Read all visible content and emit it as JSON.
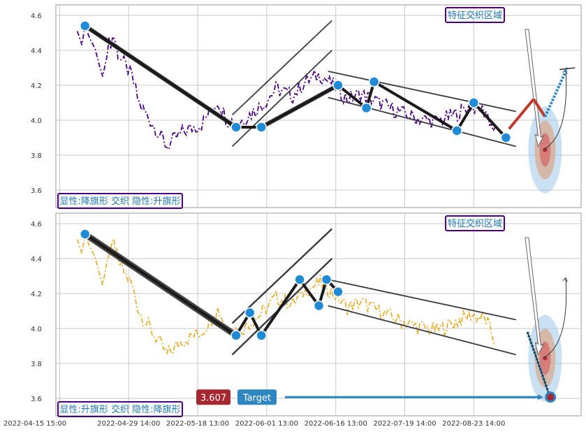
{
  "chart_data": [
    {
      "type": "line",
      "panel": "top",
      "ylim": [
        3.5,
        4.66
      ],
      "yticks": [
        3.6,
        3.8,
        4.0,
        4.2,
        4.4,
        4.6
      ],
      "grid": true,
      "series_color": "#4b0082",
      "series_style": "dash-dot",
      "zone_label": "特征交织区域",
      "legend_label": "显性:降旗形 交织 隐性:升旗形",
      "turning_points": [
        {
          "x": 1.3,
          "y": 4.54
        },
        {
          "x": 21.0,
          "y": 3.96
        },
        {
          "x": 24.3,
          "y": 3.96
        },
        {
          "x": 34.3,
          "y": 4.2
        },
        {
          "x": 38.0,
          "y": 4.07
        },
        {
          "x": 39.0,
          "y": 4.22
        },
        {
          "x": 49.8,
          "y": 3.94
        },
        {
          "x": 52.0,
          "y": 4.1
        },
        {
          "x": 56.2,
          "y": 3.9
        }
      ],
      "bold_segments": [
        [
          1.3,
          4.54,
          21.0,
          3.96
        ],
        [
          24.3,
          3.96,
          34.3,
          4.2
        ]
      ],
      "channel_lines": [
        [
          20.5,
          3.85,
          33.5,
          4.4
        ],
        [
          20.5,
          4.03,
          33.5,
          4.57
        ],
        [
          33.0,
          4.28,
          57.5,
          4.05
        ],
        [
          33.0,
          4.13,
          57.5,
          3.85
        ]
      ]
    },
    {
      "type": "line",
      "panel": "bottom",
      "ylim": [
        3.5,
        4.66
      ],
      "yticks": [
        3.6,
        3.8,
        4.0,
        4.2,
        4.4,
        4.6
      ],
      "grid": true,
      "series_color": "#e8a91f",
      "series_style": "dash-dot",
      "zone_label": "特征交织区域",
      "legend_label": "显性:升旗形 交织 隐性:降旗形",
      "target_value": "3.607",
      "target_label": "Target",
      "turning_points": [
        {
          "x": 1.3,
          "y": 4.54
        },
        {
          "x": 21.0,
          "y": 3.96
        },
        {
          "x": 22.8,
          "y": 4.09
        },
        {
          "x": 24.3,
          "y": 3.96
        },
        {
          "x": 29.3,
          "y": 4.28
        },
        {
          "x": 31.8,
          "y": 4.13
        },
        {
          "x": 32.8,
          "y": 4.28
        },
        {
          "x": 34.3,
          "y": 4.21
        }
      ],
      "bold_segments": [
        [
          1.3,
          4.54,
          21.0,
          3.96
        ]
      ],
      "channel_lines": [
        [
          20.5,
          3.85,
          33.5,
          4.4
        ],
        [
          20.5,
          4.03,
          33.5,
          4.57
        ],
        [
          33.0,
          4.28,
          57.5,
          4.05
        ],
        [
          33.0,
          4.13,
          57.5,
          3.85
        ]
      ]
    }
  ],
  "x_axis": {
    "xlim": [
      -2.5,
      66
    ],
    "tick_positions": [
      -2,
      7,
      16,
      25,
      34,
      43,
      52
    ],
    "tick_labels": [
      "2022-04-15 15:00",
      "2022-04-29 14:00",
      "2022-05-18 13:00",
      "2022-06-01 13:00",
      "2022-06-16 13:00",
      "2022-07-19 14:00",
      "2022-08-23 14:00"
    ]
  },
  "colors": {
    "grid": "#c8c8c8",
    "point": "#1f8ad6",
    "zigzag": "#1a1a1a",
    "channel": "#3a3a46",
    "label_border": "#4b0082",
    "label_text": "#1f77b4",
    "target_red": "#a8262f",
    "target_blue": "#2e86c1"
  }
}
